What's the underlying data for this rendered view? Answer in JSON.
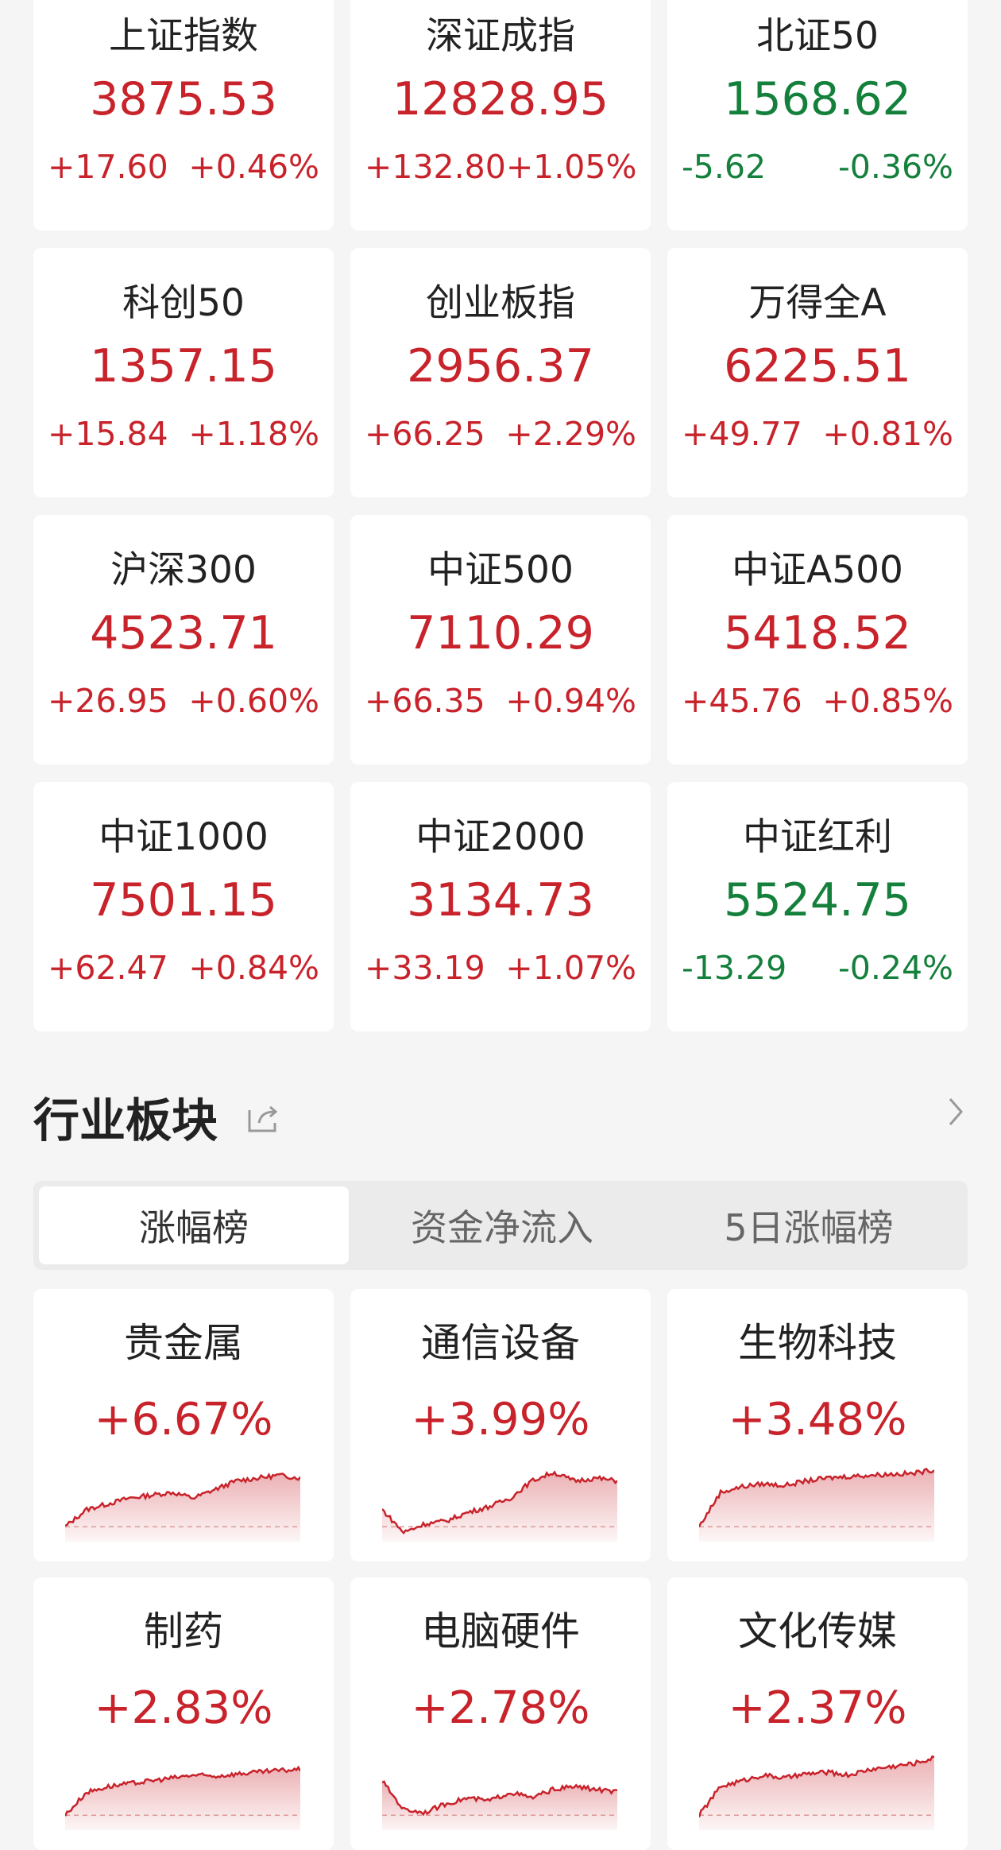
{
  "indices": [
    {
      "name": "上证指数",
      "value": "3875.53",
      "change": "+17.60",
      "pct": "+0.46%",
      "dir": "up"
    },
    {
      "name": "深证成指",
      "value": "12828.95",
      "change": "+132.80",
      "pct": "+1.05%",
      "dir": "up"
    },
    {
      "name": "北证50",
      "value": "1568.62",
      "change": "-5.62",
      "pct": "-0.36%",
      "dir": "down"
    },
    {
      "name": "科创50",
      "value": "1357.15",
      "change": "+15.84",
      "pct": "+1.18%",
      "dir": "up"
    },
    {
      "name": "创业板指",
      "value": "2956.37",
      "change": "+66.25",
      "pct": "+2.29%",
      "dir": "up"
    },
    {
      "name": "万得全A",
      "value": "6225.51",
      "change": "+49.77",
      "pct": "+0.81%",
      "dir": "up"
    },
    {
      "name": "沪深300",
      "value": "4523.71",
      "change": "+26.95",
      "pct": "+0.60%",
      "dir": "up"
    },
    {
      "name": "中证500",
      "value": "7110.29",
      "change": "+66.35",
      "pct": "+0.94%",
      "dir": "up"
    },
    {
      "name": "中证A500",
      "value": "5418.52",
      "change": "+45.76",
      "pct": "+0.85%",
      "dir": "up"
    },
    {
      "name": "中证1000",
      "value": "7501.15",
      "change": "+62.47",
      "pct": "+0.84%",
      "dir": "up"
    },
    {
      "name": "中证2000",
      "value": "3134.73",
      "change": "+33.19",
      "pct": "+1.07%",
      "dir": "up"
    },
    {
      "name": "中证红利",
      "value": "5524.75",
      "change": "-13.29",
      "pct": "-0.24%",
      "dir": "down"
    }
  ],
  "section": {
    "title": "行业板块",
    "share_icon": "share-icon",
    "more_icon": "chevron-right-icon"
  },
  "tabs": [
    {
      "label": "涨幅榜",
      "active": true
    },
    {
      "label": "资金净流入",
      "active": false
    },
    {
      "label": "5日涨幅榜",
      "active": false
    }
  ],
  "sectors": [
    {
      "name": "贵金属",
      "pct": "+6.67%",
      "trend": [
        0,
        0.3,
        0.4,
        0.5,
        0.55,
        0.6,
        0.5,
        0.65,
        0.8,
        0.85,
        0.9,
        0.85
      ]
    },
    {
      "name": "通信设备",
      "pct": "+3.99%",
      "trend": [
        0.3,
        -0.1,
        0.05,
        0.1,
        0.25,
        0.35,
        0.5,
        0.8,
        0.95,
        0.8,
        0.85,
        0.8
      ]
    },
    {
      "name": "生物科技",
      "pct": "+3.48%",
      "trend": [
        0,
        0.6,
        0.7,
        0.75,
        0.72,
        0.8,
        0.85,
        0.88,
        0.9,
        0.92,
        0.93,
        1
      ]
    },
    {
      "name": "制药",
      "pct": "+2.83%",
      "trend": [
        0,
        0.4,
        0.5,
        0.55,
        0.6,
        0.65,
        0.7,
        0.68,
        0.72,
        0.75,
        0.78,
        0.8
      ]
    },
    {
      "name": "电脑硬件",
      "pct": "+2.78%",
      "trend": [
        0.6,
        0.1,
        0.05,
        0.2,
        0.3,
        0.25,
        0.4,
        0.3,
        0.45,
        0.5,
        0.45,
        0.4
      ]
    },
    {
      "name": "文化传媒",
      "pct": "+2.37%",
      "trend": [
        0,
        0.5,
        0.6,
        0.7,
        0.65,
        0.72,
        0.75,
        0.7,
        0.8,
        0.85,
        0.9,
        1
      ]
    }
  ],
  "colors": {
    "up": "#c8232b",
    "down": "#14803c",
    "background": "#f5f5f5"
  }
}
